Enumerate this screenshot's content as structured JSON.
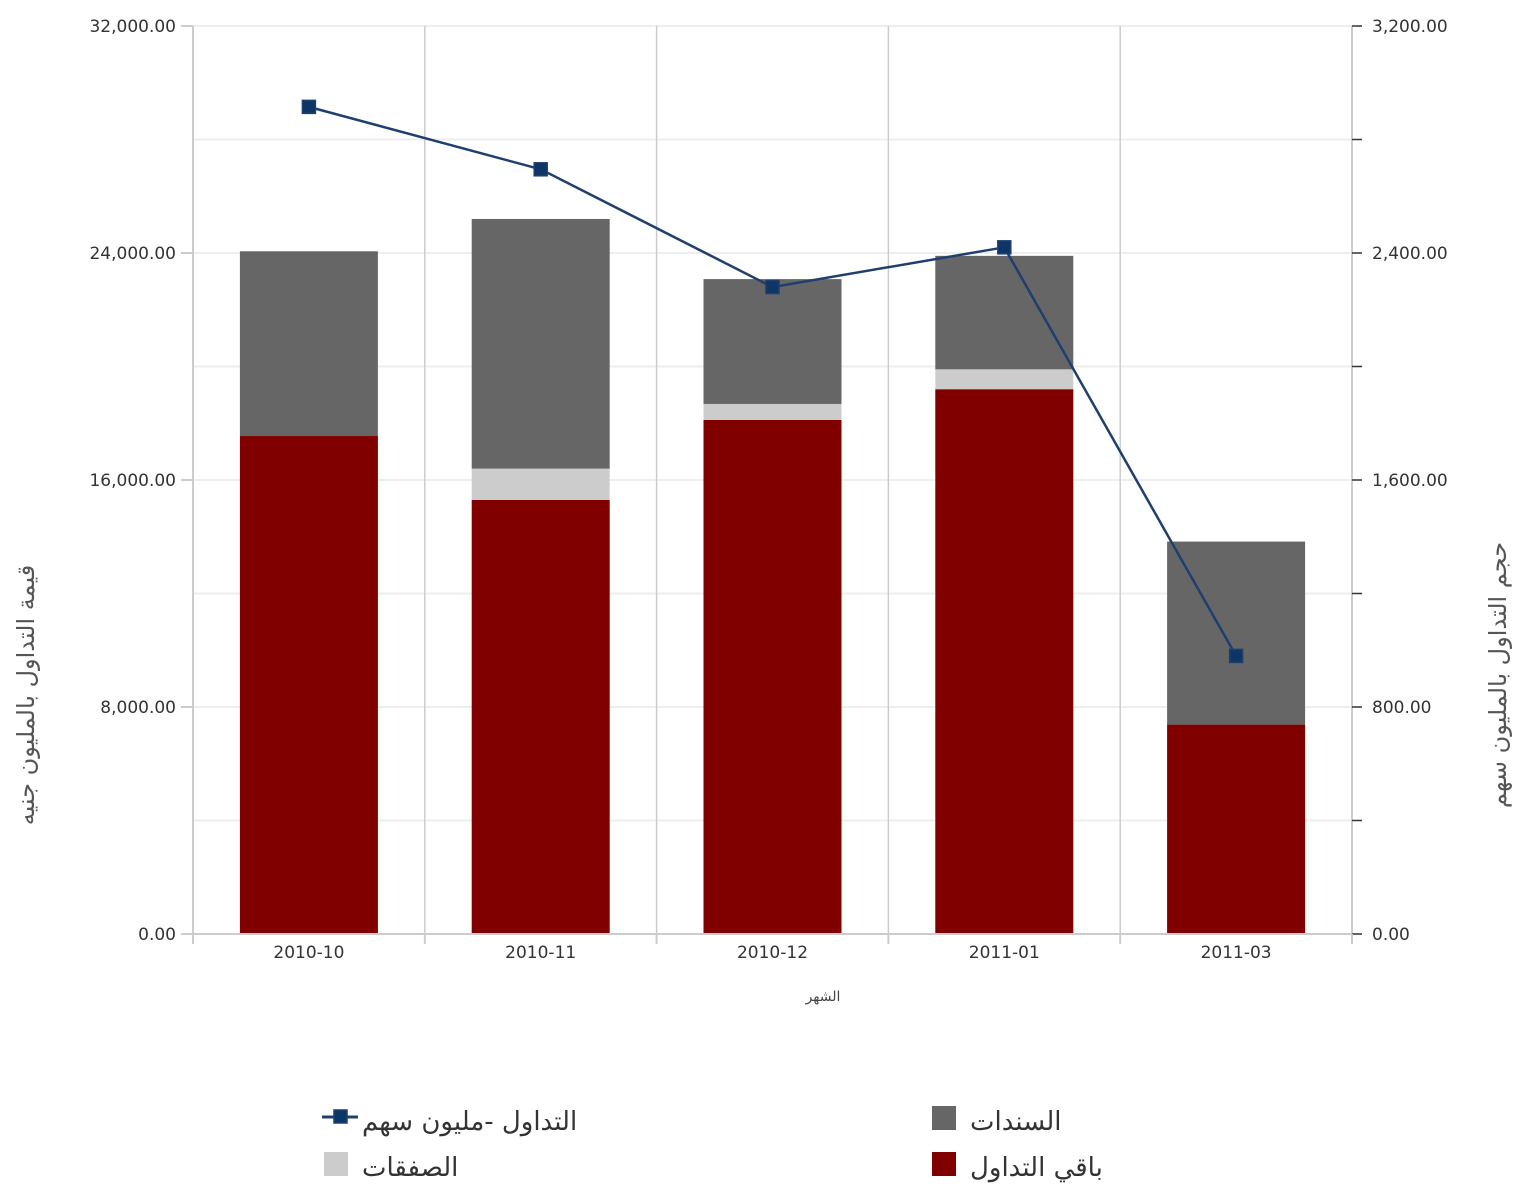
{
  "chart_data": {
    "type": "bar",
    "stacked": true,
    "categories": [
      "2010-10",
      "2010-11",
      "2010-12",
      "2011-01",
      "2011-03"
    ],
    "series": [
      {
        "name": "باقي التداول",
        "type": "bar",
        "axis": "left",
        "color": "#800000",
        "values": [
          17550,
          15300,
          18120,
          19200,
          7380
        ]
      },
      {
        "name": "الصفقات",
        "type": "bar",
        "axis": "left",
        "color": "#cccccc",
        "values": [
          0,
          1100,
          560,
          700,
          0
        ]
      },
      {
        "name": "السندات",
        "type": "bar",
        "axis": "left",
        "color": "#666666",
        "values": [
          6510,
          8800,
          4400,
          4000,
          6450
        ]
      },
      {
        "name": "التداول -مليون سهم",
        "type": "line",
        "axis": "right",
        "color": "#1f3f6e",
        "marker_color": "#0d3566",
        "values": [
          2915,
          2695,
          2280,
          2420,
          980
        ]
      }
    ],
    "xlabel": "الشهر",
    "ylabel_left": "قيمة التداول بالمليون جنيه",
    "ylabel_right": "حجم التداول بالمليون سهم",
    "ylim_left": [
      0,
      32000
    ],
    "ylim_right": [
      0,
      3200
    ],
    "yticks_left": [
      "0.00",
      "8,000.00",
      "16,000.00",
      "24,000.00",
      "32,000.00"
    ],
    "yticks_right": [
      "0.00",
      "800.00",
      "1,600.00",
      "2,400.00",
      "3,200.00"
    ],
    "grid": true,
    "legend_position": "bottom"
  }
}
